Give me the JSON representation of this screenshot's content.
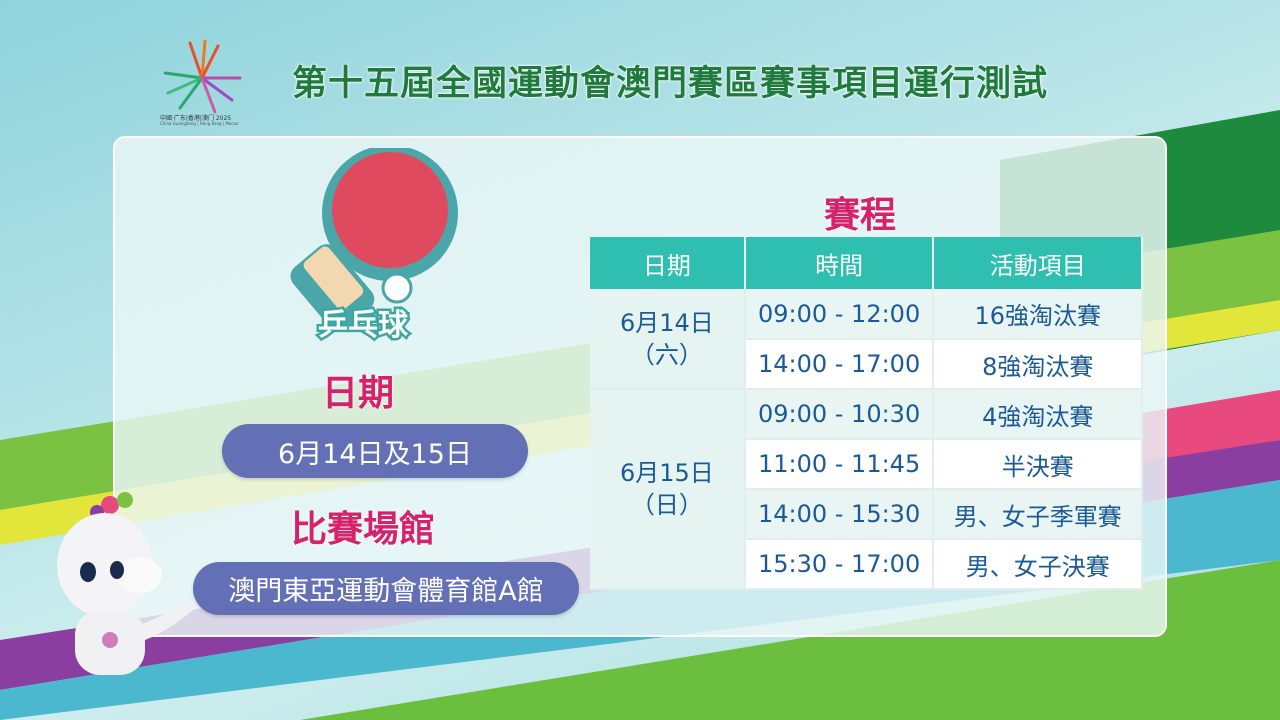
{
  "header": {
    "title": "第十五屆全國運動會澳門賽區賽事項目運行測試",
    "logo": {
      "line1": "中國·广东|香港|澳门 2025",
      "line2": "China Guangdong | Hong Kong | Macao"
    }
  },
  "sport": {
    "label": "乒乓球",
    "icon": "table-tennis-paddle-icon"
  },
  "info": {
    "date_heading": "日期",
    "date_value": "6月14日及15日",
    "venue_heading": "比賽場館",
    "venue_value": "澳門東亞運動會體育館A館"
  },
  "schedule": {
    "title": "賽程",
    "headers": [
      "日期",
      "時間",
      "活動項目"
    ],
    "days": [
      {
        "date": "6月14日",
        "weekday": "（六）",
        "rows": [
          {
            "time": "09:00 - 12:00",
            "event": "16強淘汰賽"
          },
          {
            "time": "14:00 - 17:00",
            "event": "8強淘汰賽"
          }
        ]
      },
      {
        "date": "6月15日",
        "weekday": "（日）",
        "rows": [
          {
            "time": "09:00 - 10:30",
            "event": "4強淘汰賽"
          },
          {
            "time": "11:00 - 11:45",
            "event": "半決賽"
          },
          {
            "time": "14:00 - 15:30",
            "event": "男、女子季軍賽"
          },
          {
            "time": "15:30 - 17:00",
            "event": "男、女子決賽"
          }
        ]
      }
    ]
  },
  "colors": {
    "title_green": "#1f7a3d",
    "heading_pink": "#d6226a",
    "pill_blue": "#6470b6",
    "table_header": "#2fbfb1",
    "table_text": "#1b5a98"
  }
}
